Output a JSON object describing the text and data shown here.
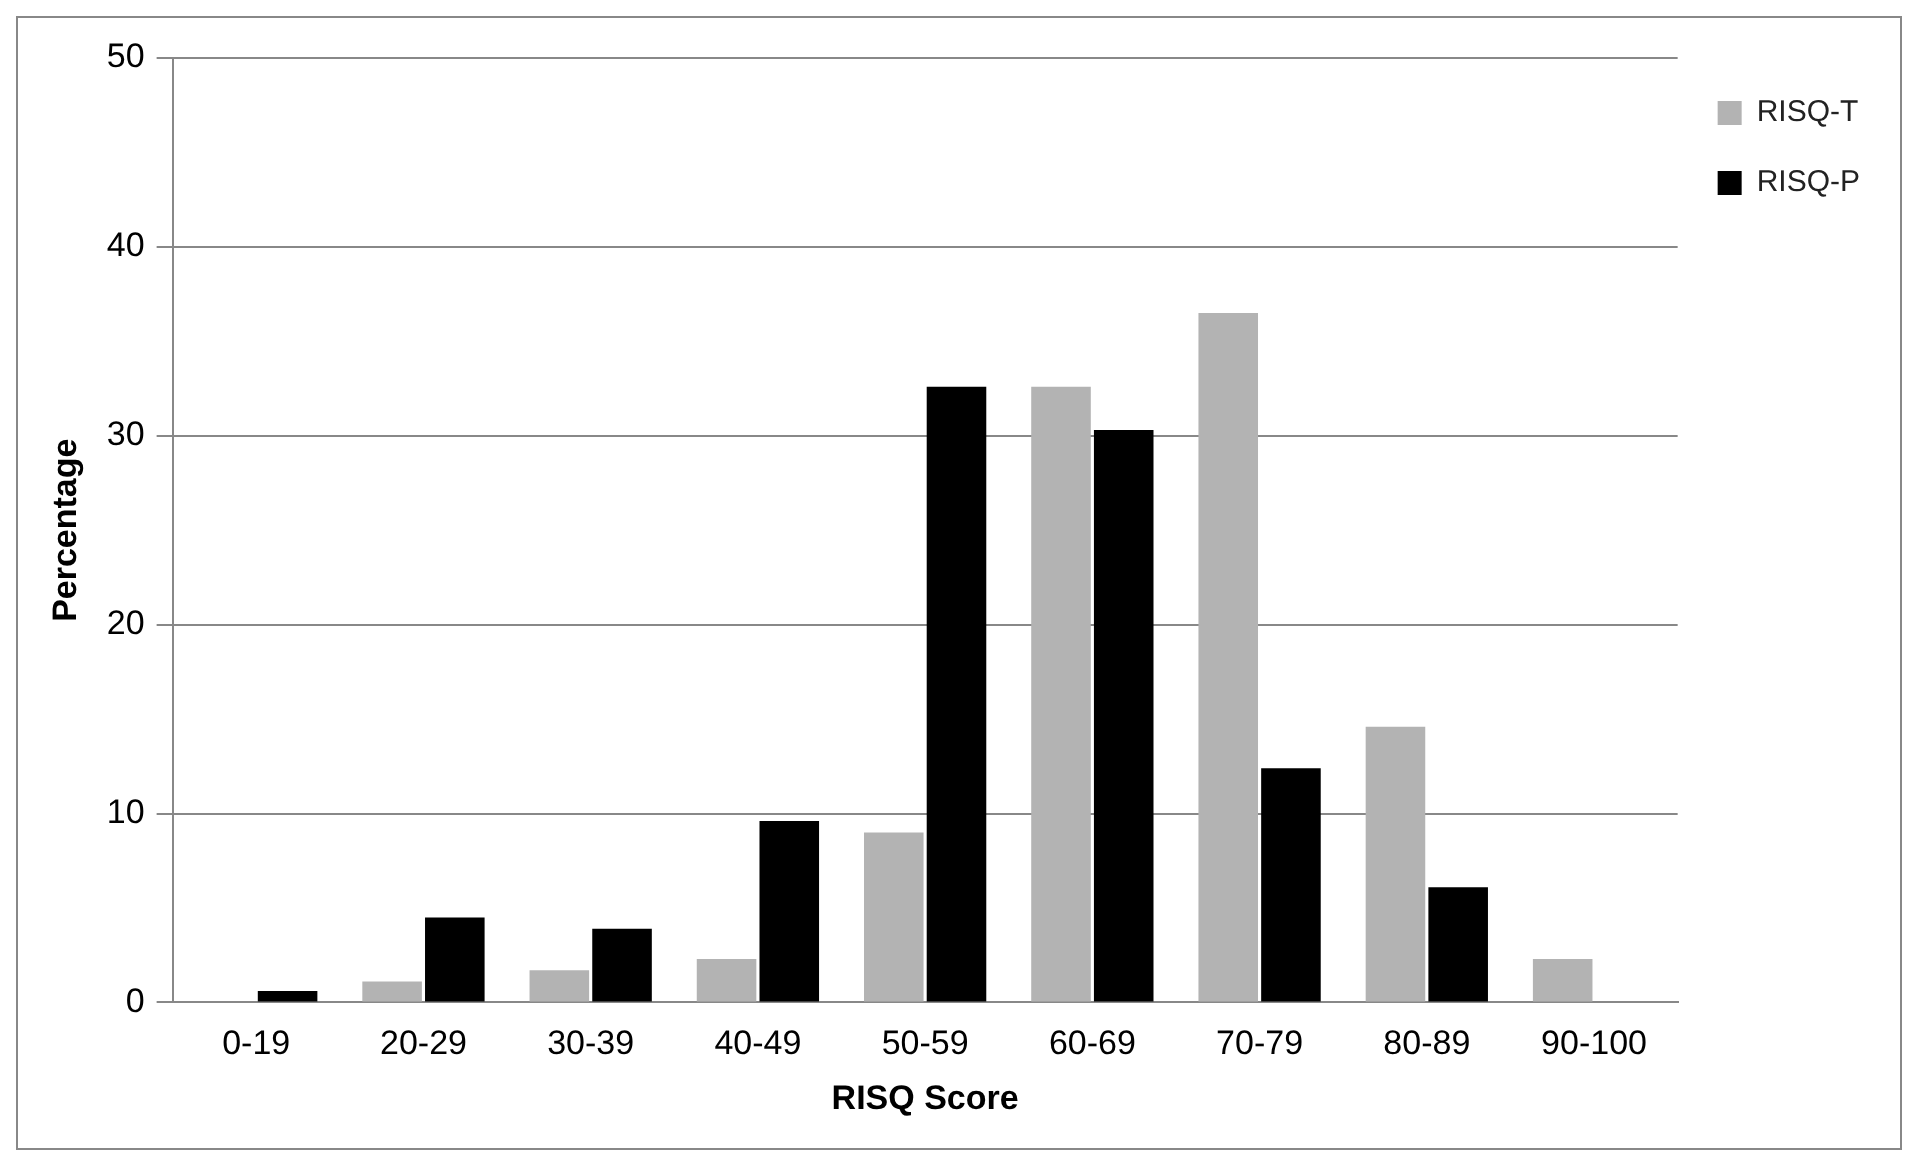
{
  "chart_data": {
    "type": "bar",
    "xlabel": "RISQ Score",
    "ylabel": "Percentage",
    "categories": [
      "0-19",
      "20-29",
      "30-39",
      "40-49",
      "50-59",
      "60-69",
      "70-79",
      "80-89",
      "90-100"
    ],
    "series": [
      {
        "name": "RISQ-T",
        "color": "#b3b3b3",
        "values": [
          0,
          1.1,
          1.7,
          2.3,
          9.0,
          32.6,
          36.5,
          14.6,
          2.3
        ]
      },
      {
        "name": "RISQ-P",
        "color": "#000000",
        "values": [
          0.6,
          4.5,
          3.9,
          9.6,
          32.6,
          30.3,
          12.4,
          6.1,
          0
        ]
      }
    ],
    "ylim": [
      0,
      50
    ],
    "yticks": [
      0,
      10,
      20,
      30,
      40,
      50
    ],
    "grid": "y",
    "legend": "top right"
  }
}
